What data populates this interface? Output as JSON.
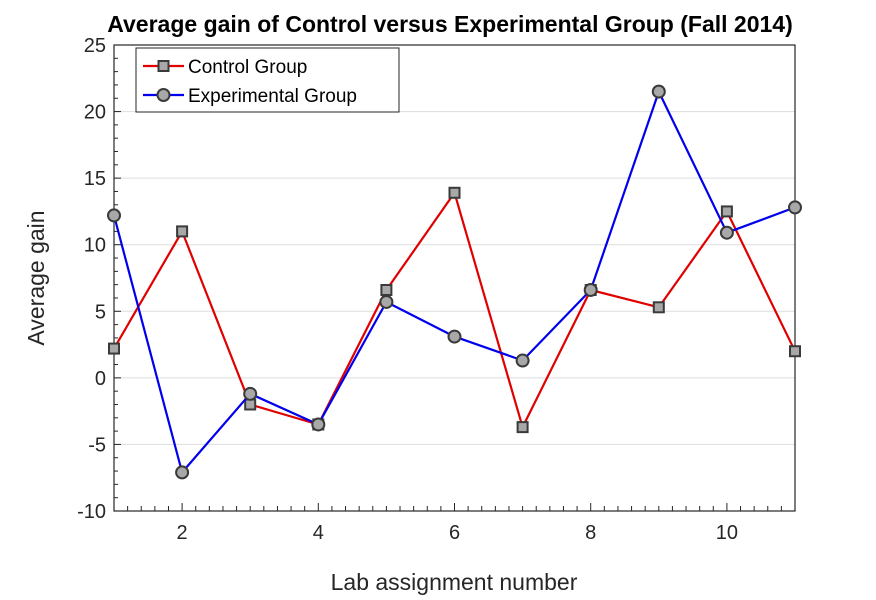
{
  "chart_data": {
    "type": "line",
    "title": "Average gain of Control versus Experimental Group (Fall 2014)",
    "xlabel": "Lab assignment number",
    "ylabel": "Average gain",
    "xlim": [
      1,
      11
    ],
    "ylim": [
      -10,
      25
    ],
    "xticks": [
      2,
      4,
      6,
      8,
      10
    ],
    "yticks": [
      -10,
      -5,
      0,
      5,
      10,
      15,
      20,
      25
    ],
    "x": [
      1,
      2,
      3,
      4,
      5,
      6,
      7,
      8,
      9,
      10,
      11
    ],
    "grid": true,
    "legend_position": "top-left",
    "series": [
      {
        "name": "Control Group",
        "color": "#e00000",
        "marker": "square",
        "values": [
          2.2,
          11.0,
          -2.0,
          -3.5,
          6.6,
          13.9,
          -3.7,
          6.6,
          5.3,
          12.5,
          2.0
        ]
      },
      {
        "name": "Experimental Group",
        "color": "#0000ee",
        "marker": "circle",
        "values": [
          12.2,
          -7.1,
          -1.2,
          -3.5,
          5.7,
          3.1,
          1.3,
          6.6,
          21.5,
          10.9,
          12.8
        ]
      }
    ]
  }
}
